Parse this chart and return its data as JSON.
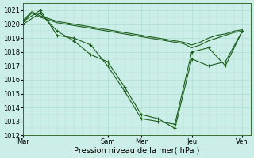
{
  "background_color": "#cceee8",
  "grid_color": "#aaddcc",
  "line_color": "#1a5c1a",
  "xlabel": "Pression niveau de la mer( hPa )",
  "ylim": [
    1012,
    1021.5
  ],
  "yticks": [
    1012,
    1013,
    1014,
    1015,
    1016,
    1017,
    1018,
    1019,
    1020,
    1021
  ],
  "xtick_labels": [
    "Mar",
    "Sam",
    "Mer",
    "Jeu",
    "Ven"
  ],
  "xtick_positions": [
    0,
    10,
    14,
    20,
    26
  ],
  "xlim": [
    0,
    27
  ],
  "series": [
    {
      "x": [
        0,
        1,
        2,
        3,
        4,
        5,
        6,
        7,
        8,
        9,
        10,
        11,
        12,
        13,
        14,
        15,
        16,
        17,
        18,
        19,
        20,
        21,
        22,
        23,
        24,
        25,
        26
      ],
      "y": [
        1020.2,
        1020.8,
        1020.5,
        1020.3,
        1020.1,
        1020.0,
        1019.9,
        1019.8,
        1019.7,
        1019.6,
        1019.5,
        1019.4,
        1019.3,
        1019.2,
        1019.1,
        1019.0,
        1018.9,
        1018.8,
        1018.7,
        1018.6,
        1018.3,
        1018.5,
        1018.8,
        1019.0,
        1019.2,
        1019.4,
        1019.5
      ],
      "marker": false
    },
    {
      "x": [
        0,
        1,
        2,
        3,
        4,
        5,
        6,
        7,
        8,
        9,
        10,
        11,
        12,
        13,
        14,
        15,
        16,
        17,
        18,
        19,
        20,
        21,
        22,
        23,
        24,
        25,
        26
      ],
      "y": [
        1020.3,
        1020.9,
        1020.6,
        1020.4,
        1020.2,
        1020.1,
        1020.0,
        1019.9,
        1019.8,
        1019.7,
        1019.6,
        1019.5,
        1019.4,
        1019.3,
        1019.2,
        1019.1,
        1019.0,
        1018.9,
        1018.8,
        1018.7,
        1018.5,
        1018.7,
        1019.0,
        1019.2,
        1019.3,
        1019.5,
        1019.6
      ],
      "marker": false
    },
    {
      "x": [
        0,
        2,
        4,
        6,
        8,
        10,
        12,
        14,
        16,
        18,
        20,
        22,
        24,
        26
      ],
      "y": [
        1020.2,
        1021.0,
        1019.2,
        1019.0,
        1018.5,
        1017.0,
        1015.2,
        1013.2,
        1013.0,
        1012.8,
        1018.0,
        1018.3,
        1017.0,
        1019.5
      ],
      "marker": true
    },
    {
      "x": [
        0,
        2,
        4,
        6,
        8,
        10,
        12,
        14,
        16,
        18,
        20,
        22,
        24,
        26
      ],
      "y": [
        1020.0,
        1020.8,
        1019.5,
        1018.8,
        1017.8,
        1017.3,
        1015.5,
        1013.5,
        1013.2,
        1012.5,
        1017.5,
        1017.0,
        1017.3,
        1019.5
      ],
      "marker": true
    }
  ],
  "marker": "+",
  "marker_size": 3,
  "linewidth": 0.8,
  "xlabel_fontsize": 7,
  "ytick_fontsize": 6,
  "xtick_fontsize": 6
}
